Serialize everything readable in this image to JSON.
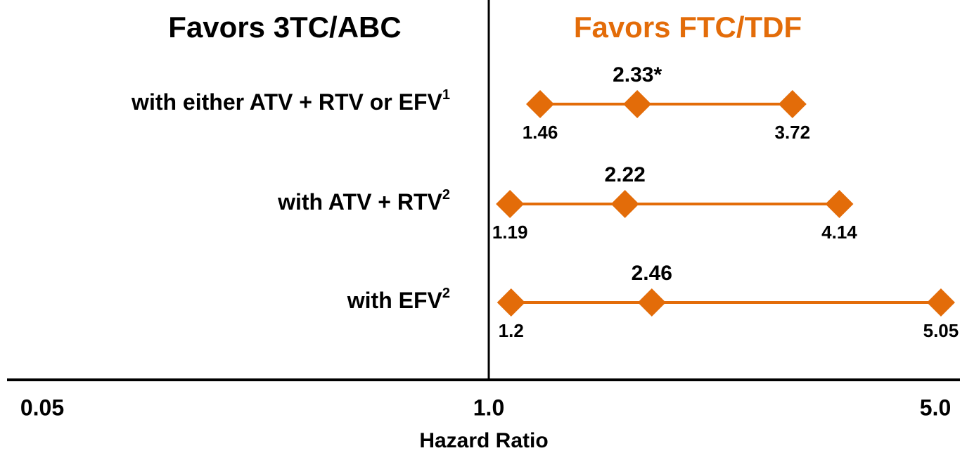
{
  "chart_data": {
    "type": "forest",
    "left_title": "Favors 3TC/ABC",
    "right_title": "Favors FTC/TDF",
    "right_title_color": "#e36c09",
    "xlabel": "Hazard Ratio",
    "xlim": [
      0.05,
      5
    ],
    "xticks": [
      0.05,
      {
        "value": 1,
        "label": "1.0"
      },
      {
        "value": 5,
        "label": "5.0"
      }
    ],
    "color": "#e36c09",
    "rows": [
      {
        "label": "with either ATV + RTV or EFV",
        "note": "1"
      },
      {
        "label": "with ATV + RTV",
        "note": "2"
      },
      {
        "label": "with EFV",
        "note": "2"
      }
    ],
    "lower": [
      1.46,
      1.19,
      1.2
    ],
    "values": [
      2.33,
      2.22,
      2.46
    ],
    "value_labels": [
      "2.33*",
      "2.22",
      "2.46"
    ],
    "upper": [
      3.72,
      4.14,
      5.05
    ]
  }
}
